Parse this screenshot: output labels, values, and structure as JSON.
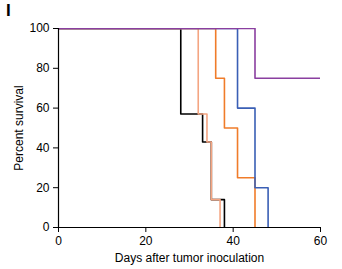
{
  "chart_data": {
    "type": "line",
    "title": "I",
    "x_label": "Days after tumor inoculation",
    "y_label": "Percent survival",
    "xlim": [
      0,
      60
    ],
    "xticks": [
      0,
      20,
      40,
      60
    ],
    "ylim": [
      0,
      100
    ],
    "yticks": [
      0,
      20,
      40,
      60,
      80,
      100
    ],
    "grid": false,
    "series": [
      {
        "color": "#000000",
        "line_style": "step",
        "x": [
          0,
          28,
          33,
          35,
          38,
          38
        ],
        "values": [
          100,
          57,
          43,
          14,
          0,
          0
        ]
      },
      {
        "color": "#f4a582",
        "line_style": "step",
        "x": [
          0,
          32,
          34,
          35,
          37,
          37
        ],
        "values": [
          100,
          57,
          43,
          14,
          0,
          0
        ]
      },
      {
        "color": "#f07c2a",
        "line_style": "step",
        "x": [
          0,
          36,
          38,
          41,
          45,
          45
        ],
        "values": [
          100,
          75,
          50,
          25,
          0,
          0
        ]
      },
      {
        "color": "#3a5fb5",
        "line_style": "step",
        "x": [
          0,
          41,
          45,
          48,
          48
        ],
        "values": [
          100,
          60,
          20,
          0,
          0
        ]
      },
      {
        "color": "#8a3fa0",
        "line_style": "step",
        "x": [
          0,
          45,
          60
        ],
        "values": [
          100,
          75,
          75
        ]
      }
    ]
  }
}
